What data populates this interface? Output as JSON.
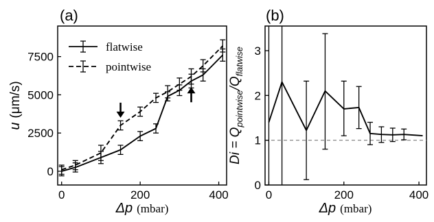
{
  "chart_data": [
    {
      "panel_label": "(a)",
      "type": "line",
      "xlabel_symbol": "Δp",
      "xlabel_unit": "(mbar)",
      "ylabel_symbol": "u",
      "ylabel_unit": "(μm/s)",
      "xlim": [
        -10,
        420
      ],
      "ylim": [
        -900,
        9500
      ],
      "xticks": [
        0,
        200,
        400
      ],
      "yticks": [
        0,
        2500,
        5000,
        7500
      ],
      "grid": false,
      "legend_position": "top-left",
      "series": [
        {
          "name": "flatwise",
          "line_style": "solid",
          "x": [
            0,
            35,
            100,
            150,
            200,
            240,
            270,
            300,
            330,
            360,
            410
          ],
          "y": [
            0,
            250,
            900,
            1400,
            2300,
            2800,
            4900,
            5300,
            5900,
            6300,
            7600
          ],
          "yerr": [
            300,
            300,
            400,
            300,
            300,
            300,
            300,
            350,
            450,
            400,
            400
          ]
        },
        {
          "name": "pointwise",
          "line_style": "dashed",
          "x": [
            0,
            35,
            100,
            150,
            200,
            240,
            270,
            300,
            330,
            360,
            410
          ],
          "y": [
            100,
            400,
            1200,
            3000,
            3900,
            4800,
            5200,
            5700,
            6200,
            6900,
            8200
          ],
          "yerr": [
            300,
            300,
            500,
            300,
            300,
            300,
            400,
            400,
            500,
            400,
            400
          ]
        }
      ],
      "annotations": [
        {
          "type": "arrow",
          "direction": "down",
          "x": 150,
          "y": 3500
        },
        {
          "type": "arrow",
          "direction": "up",
          "x": 330,
          "y": 5500
        }
      ]
    },
    {
      "panel_label": "(b)",
      "type": "line",
      "xlabel_symbol": "Δp",
      "xlabel_unit": "(mbar)",
      "ylabel": "Di = Q_pointwise / Q_flatwise",
      "ylabel_parts": {
        "lhs": "Di = Q",
        "sub1": "pointwise",
        "slash": "/Q",
        "sub2": "flatwise"
      },
      "xlim": [
        -10,
        420
      ],
      "ylim": [
        0,
        3.55
      ],
      "xticks": [
        0,
        200,
        400
      ],
      "yticks": [
        0,
        1,
        2,
        3
      ],
      "grid": false,
      "reference_line": {
        "y": 1,
        "style": "dashed",
        "color": "#888888"
      },
      "series": [
        {
          "line_style": "solid",
          "x": [
            0,
            35,
            100,
            150,
            200,
            240,
            270,
            300,
            330,
            360,
            410
          ],
          "y": [
            1.4,
            2.3,
            1.22,
            2.1,
            1.7,
            1.73,
            1.15,
            1.13,
            1.12,
            1.13,
            1.1
          ],
          "yerr_low": [
            1.5,
            2.4,
            1.1,
            1.3,
            0.6,
            0.47,
            0.25,
            0.18,
            0.15,
            0.12,
            0.0
          ],
          "yerr_high": [
            2.2,
            1.3,
            1.1,
            1.28,
            0.62,
            0.47,
            0.25,
            0.17,
            0.15,
            0.12,
            0.0
          ]
        }
      ]
    }
  ]
}
